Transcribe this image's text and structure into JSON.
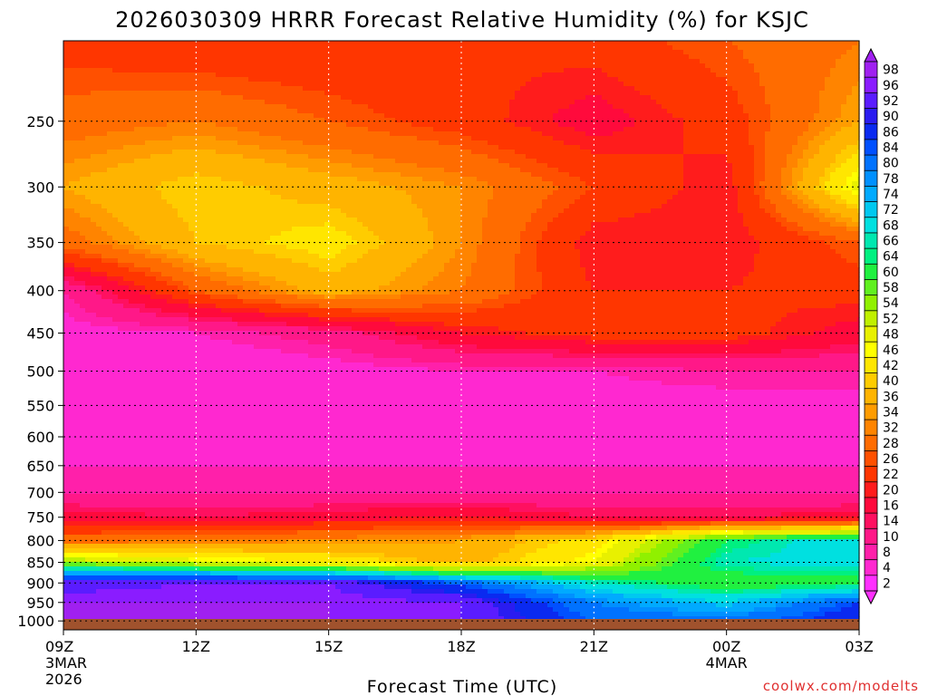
{
  "chart_data": {
    "type": "heatmap",
    "title": "2026030309 HRRR Forecast Relative Humidity (%) for KSJC",
    "xlabel": "Forecast Time (UTC)",
    "ylabel": "",
    "x_ticks": [
      {
        "label": "09Z",
        "sub": [
          "3MAR",
          "2026"
        ]
      },
      {
        "label": "12Z",
        "sub": []
      },
      {
        "label": "15Z",
        "sub": []
      },
      {
        "label": "18Z",
        "sub": []
      },
      {
        "label": "21Z",
        "sub": []
      },
      {
        "label": "00Z",
        "sub": [
          "4MAR"
        ]
      },
      {
        "label": "03Z",
        "sub": []
      }
    ],
    "x_hours": [
      0,
      3,
      6,
      9,
      12,
      15,
      18
    ],
    "y_ticks": [
      "250",
      "300",
      "350",
      "400",
      "450",
      "500",
      "550",
      "600",
      "650",
      "700",
      "750",
      "800",
      "850",
      "900",
      "950",
      "1000"
    ],
    "y_levels_hpa": [
      250,
      300,
      350,
      400,
      450,
      500,
      550,
      600,
      650,
      700,
      750,
      800,
      850,
      900,
      950,
      1000
    ],
    "ylim_hpa": [
      200,
      1025
    ],
    "scale": "log-pressure",
    "grid": true,
    "colorbar": {
      "placement": "right",
      "labels": [
        "98",
        "96",
        "92",
        "90",
        "86",
        "84",
        "80",
        "78",
        "74",
        "72",
        "68",
        "66",
        "64",
        "60",
        "58",
        "54",
        "52",
        "48",
        "46",
        "42",
        "40",
        "36",
        "34",
        "32",
        "28",
        "26",
        "22",
        "20",
        "16",
        "14",
        "10",
        "8",
        "4",
        "2"
      ],
      "colors": [
        "#a020f0",
        "#8a1cff",
        "#5a1cff",
        "#2a1cf0",
        "#0a2af0",
        "#0050ff",
        "#0072ff",
        "#0090ff",
        "#00aaff",
        "#00c8f0",
        "#00e0e0",
        "#00e8b0",
        "#00f080",
        "#20f040",
        "#60f020",
        "#90f000",
        "#c0f000",
        "#e8f000",
        "#ffff00",
        "#ffe600",
        "#ffcc00",
        "#ffb400",
        "#ff9c00",
        "#ff8400",
        "#ff6c00",
        "#ff5000",
        "#ff3600",
        "#ff1c1c",
        "#ff0a3c",
        "#ff1060",
        "#ff1888",
        "#ff20aa",
        "#ff28d0",
        "#ff30ff"
      ]
    },
    "ground_color": "#a0522d",
    "rh_samples": {
      "levels_hpa": [
        200,
        250,
        300,
        350,
        400,
        450,
        500,
        550,
        600,
        650,
        700,
        750,
        800,
        850,
        900,
        950,
        1000
      ],
      "hours": [
        0,
        3,
        6,
        9,
        12,
        15,
        18
      ],
      "values": [
        [
          24,
          22,
          22,
          22,
          24,
          28,
          32
        ],
        [
          30,
          32,
          28,
          24,
          18,
          24,
          36
        ],
        [
          36,
          42,
          38,
          34,
          26,
          20,
          50
        ],
        [
          30,
          40,
          44,
          34,
          20,
          20,
          28
        ],
        [
          10,
          28,
          38,
          32,
          22,
          22,
          24
        ],
        [
          6,
          8,
          12,
          20,
          24,
          24,
          18
        ],
        [
          4,
          4,
          6,
          8,
          8,
          10,
          10
        ],
        [
          6,
          6,
          6,
          6,
          6,
          6,
          6
        ],
        [
          6,
          6,
          6,
          6,
          6,
          6,
          6
        ],
        [
          8,
          8,
          8,
          8,
          8,
          8,
          8
        ],
        [
          10,
          10,
          10,
          10,
          10,
          10,
          10
        ],
        [
          18,
          16,
          18,
          20,
          16,
          16,
          18
        ],
        [
          30,
          32,
          34,
          36,
          44,
          64,
          72
        ],
        [
          56,
          50,
          46,
          38,
          48,
          68,
          70
        ],
        [
          94,
          96,
          96,
          84,
          68,
          60,
          62
        ],
        [
          98,
          98,
          98,
          96,
          80,
          72,
          86
        ],
        [
          98,
          98,
          98,
          96,
          84,
          82,
          90
        ]
      ]
    },
    "credit": "coolwx.com/modelts"
  }
}
